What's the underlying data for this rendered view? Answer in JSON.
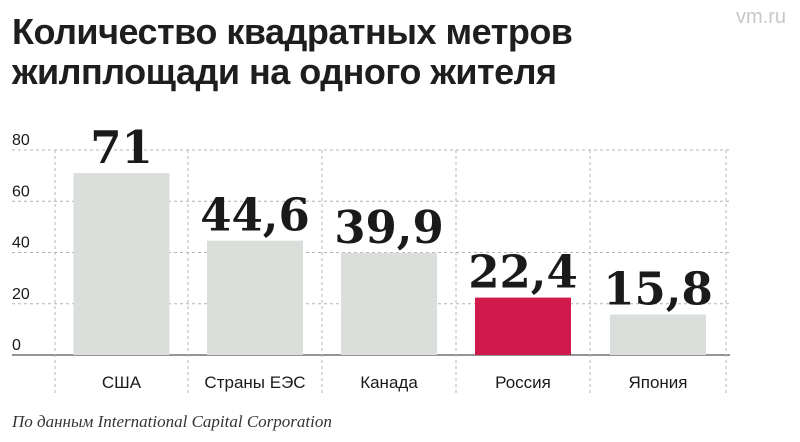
{
  "watermark": "vm.ru",
  "title_lines": [
    "Количество квадратных метров",
    "жилплощади на одного жителя"
  ],
  "source": "По данным International Capital Corporation",
  "colors": {
    "bar": "#dadfdc",
    "highlight": "#cf1a4b",
    "grid": "#b4b4b4",
    "axis": "#555555"
  },
  "chart_data": {
    "type": "bar",
    "categories": [
      "США",
      "Страны ЕЭС",
      "Канада",
      "Россия",
      "Япония"
    ],
    "values": [
      71,
      44.6,
      39.9,
      22.4,
      15.8
    ],
    "value_labels": [
      "71",
      "44,6",
      "39,9",
      "22,4",
      "15,8"
    ],
    "highlight_category": "Россия",
    "yticks": [
      0,
      20,
      40,
      60,
      80
    ],
    "ylim": [
      0,
      80
    ],
    "grid": true,
    "title": "Количество квадратных метров жилплощади на одного жителя",
    "xlabel": "",
    "ylabel": ""
  }
}
